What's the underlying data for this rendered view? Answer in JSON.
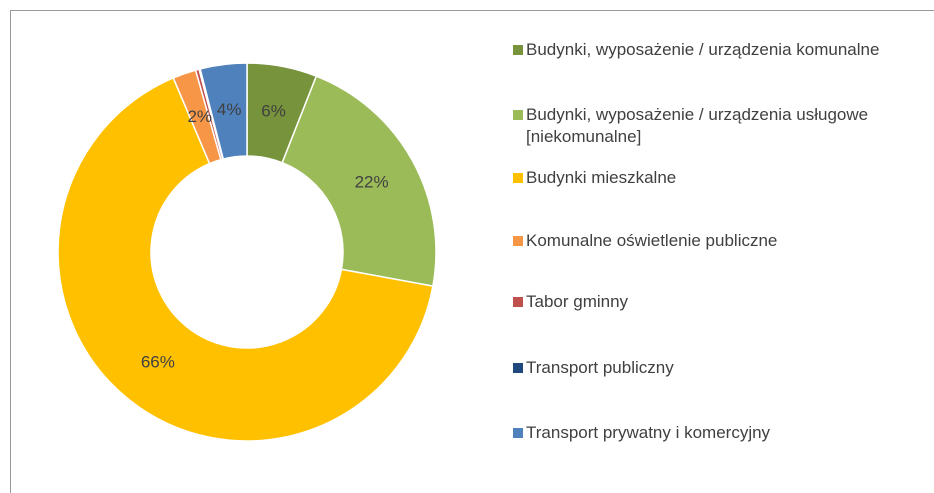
{
  "chart_data": {
    "type": "donut",
    "categories": [
      "Budynki, wyposażenie / urządzenia komunalne",
      "Budynki, wyposażenie / urządzenia usługowe [niekomunalne]",
      "Budynki mieszkalne",
      "Komunalne oświetlenie publiczne",
      "Tabor gminny",
      "Transport publiczny",
      "Transport prywatny i komercyjny"
    ],
    "values": [
      6,
      22,
      66,
      2,
      0.3,
      0.1,
      4
    ],
    "value_labels": [
      "6%",
      "22%",
      "66%",
      "2%",
      null,
      null,
      "4%"
    ],
    "colors": [
      "#77933c",
      "#9bbb59",
      "#ffc000",
      "#f79646",
      "#c0504d",
      "#1f497d",
      "#4f81bd"
    ],
    "legend": "right"
  }
}
